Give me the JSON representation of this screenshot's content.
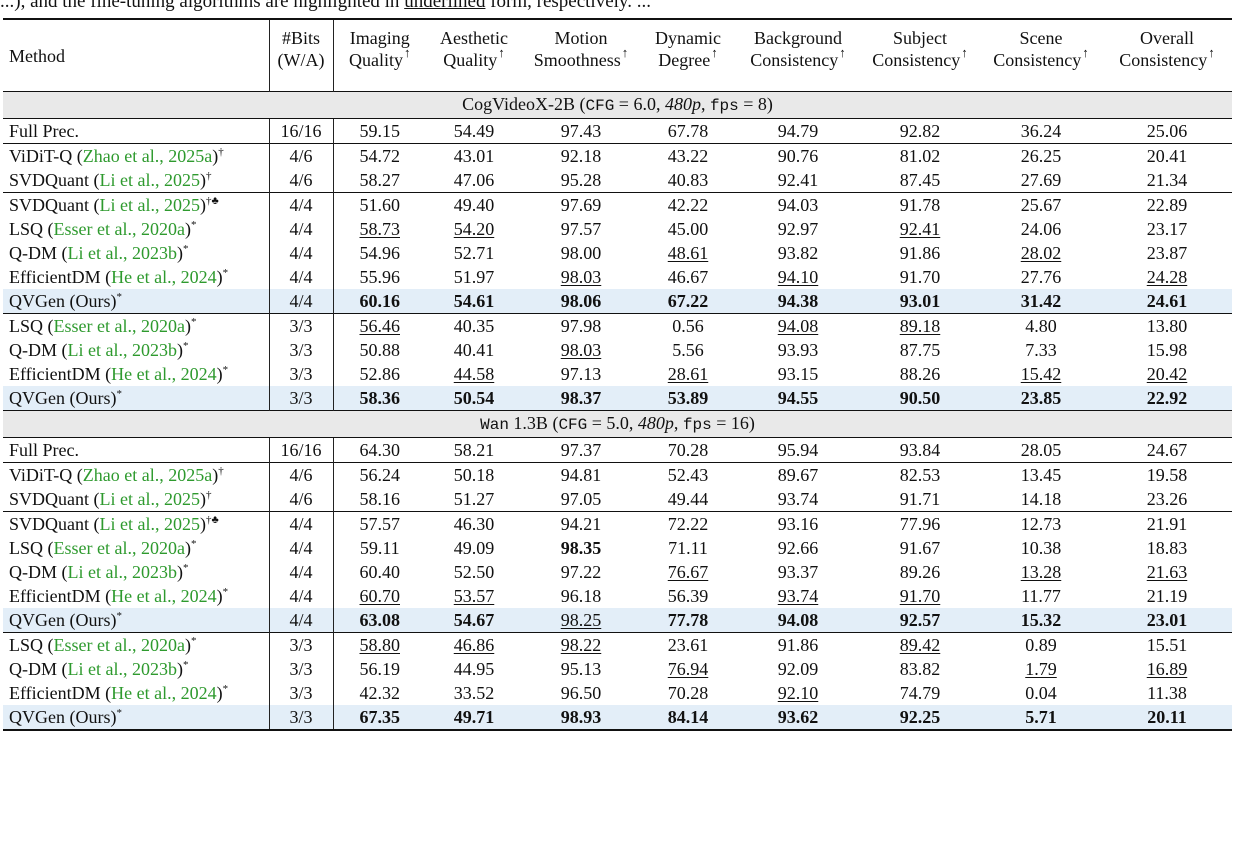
{
  "top_line": {
    "left": "...), and the fine-tuning algorithms are highlighted in",
    "underlined": "underlined",
    "right": "form, respectively. ..."
  },
  "headers": [
    {
      "key": "method",
      "l1": "Method",
      "l2": ""
    },
    {
      "key": "bits",
      "l1": "#Bits",
      "l2": "(W/A)"
    },
    {
      "key": "iq",
      "l1": "Imaging",
      "l2": "Quality",
      "arrow": "↑"
    },
    {
      "key": "aq",
      "l1": "Aesthetic",
      "l2": "Quality",
      "arrow": "↑"
    },
    {
      "key": "ms",
      "l1": "Motion",
      "l2": "Smoothness",
      "arrow": "↑"
    },
    {
      "key": "dd",
      "l1": "Dynamic",
      "l2": "Degree",
      "arrow": "↑"
    },
    {
      "key": "bc",
      "l1": "Background",
      "l2": "Consistency",
      "arrow": "↑"
    },
    {
      "key": "sc",
      "l1": "Subject",
      "l2": "Consistency",
      "arrow": "↑"
    },
    {
      "key": "scc",
      "l1": "Scene",
      "l2": "Consistency",
      "arrow": "↑"
    },
    {
      "key": "oc",
      "l1": "Overall",
      "l2": "Consistency",
      "arrow": "↑"
    }
  ],
  "sections": [
    {
      "title": "CogVideoX-2B (CFG = 6.0, 480p, fps = 8)",
      "title_model": "CogVideoX-2B",
      "title_cfg": "CFG",
      "title_cfg_val": "6.0",
      "title_res": "480p",
      "title_fps": "fps",
      "title_fps_val": "8",
      "groups": [
        [
          {
            "method": "Full Prec.",
            "cite": "",
            "mark": "",
            "bits": "16/16",
            "values": [
              "59.15",
              "54.49",
              "97.43",
              "67.78",
              "94.79",
              "92.82",
              "36.24",
              "25.06"
            ],
            "bold": [],
            "under": []
          }
        ],
        [
          {
            "method": "ViDiT-Q",
            "cite": "Zhao et al., 2025a",
            "mark": "†",
            "bits": "4/6",
            "values": [
              "54.72",
              "43.01",
              "92.18",
              "43.22",
              "90.76",
              "81.02",
              "26.25",
              "20.41"
            ],
            "bold": [],
            "under": []
          },
          {
            "method": "SVDQuant",
            "cite": "Li et al., 2025",
            "mark": "†",
            "bits": "4/6",
            "values": [
              "58.27",
              "47.06",
              "95.28",
              "40.83",
              "92.41",
              "87.45",
              "27.69",
              "21.34"
            ],
            "bold": [],
            "under": []
          }
        ],
        [
          {
            "method": "SVDQuant",
            "cite": "Li et al., 2025",
            "mark": "†♣",
            "bits": "4/4",
            "values": [
              "51.60",
              "49.40",
              "97.69",
              "42.22",
              "94.03",
              "91.78",
              "25.67",
              "22.89"
            ],
            "bold": [],
            "under": []
          },
          {
            "method": "LSQ",
            "cite": "Esser et al., 2020a",
            "mark": "*",
            "bits": "4/4",
            "values": [
              "58.73",
              "54.20",
              "97.57",
              "45.00",
              "92.97",
              "92.41",
              "24.06",
              "23.17"
            ],
            "bold": [],
            "under": [
              0,
              1,
              5
            ]
          },
          {
            "method": "Q-DM",
            "cite": "Li et al., 2023b",
            "mark": "*",
            "bits": "4/4",
            "values": [
              "54.96",
              "52.71",
              "98.00",
              "48.61",
              "93.82",
              "91.86",
              "28.02",
              "23.87"
            ],
            "bold": [],
            "under": [
              3,
              6
            ]
          },
          {
            "method": "EfficientDM",
            "cite": "He et al., 2024",
            "mark": "*",
            "bits": "4/4",
            "values": [
              "55.96",
              "51.97",
              "98.03",
              "46.67",
              "94.10",
              "91.70",
              "27.76",
              "24.28"
            ],
            "bold": [],
            "under": [
              2,
              4,
              7
            ]
          },
          {
            "method": "QVGen (Ours)",
            "cite": "",
            "mark": "*",
            "bits": "4/4",
            "values": [
              "60.16",
              "54.61",
              "98.06",
              "67.22",
              "94.38",
              "93.01",
              "31.42",
              "24.61"
            ],
            "bold": [
              0,
              1,
              2,
              3,
              4,
              5,
              6,
              7
            ],
            "under": [],
            "hl": true
          }
        ],
        [
          {
            "method": "LSQ",
            "cite": "Esser et al., 2020a",
            "mark": "*",
            "bits": "3/3",
            "values": [
              "56.46",
              "40.35",
              "97.98",
              "0.56",
              "94.08",
              "89.18",
              "4.80",
              "13.80"
            ],
            "bold": [],
            "under": [
              0,
              4,
              5
            ]
          },
          {
            "method": "Q-DM",
            "cite": "Li et al., 2023b",
            "mark": "*",
            "bits": "3/3",
            "values": [
              "50.88",
              "40.41",
              "98.03",
              "5.56",
              "93.93",
              "87.75",
              "7.33",
              "15.98"
            ],
            "bold": [],
            "under": [
              2
            ]
          },
          {
            "method": "EfficientDM",
            "cite": "He et al., 2024",
            "mark": "*",
            "bits": "3/3",
            "values": [
              "52.86",
              "44.58",
              "97.13",
              "28.61",
              "93.15",
              "88.26",
              "15.42",
              "20.42"
            ],
            "bold": [],
            "under": [
              1,
              3,
              6,
              7
            ]
          },
          {
            "method": "QVGen (Ours)",
            "cite": "",
            "mark": "*",
            "bits": "3/3",
            "values": [
              "58.36",
              "50.54",
              "98.37",
              "53.89",
              "94.55",
              "90.50",
              "23.85",
              "22.92"
            ],
            "bold": [
              0,
              1,
              2,
              3,
              4,
              5,
              6,
              7
            ],
            "under": [],
            "hl": true
          }
        ]
      ]
    },
    {
      "title": "Wan 1.3B (CFG = 5.0, 480p, fps = 16)",
      "title_model": "Wan",
      "title_model2": "1.3B",
      "title_cfg": "CFG",
      "title_cfg_val": "5.0",
      "title_res": "480p",
      "title_fps": "fps",
      "title_fps_val": "16",
      "groups": [
        [
          {
            "method": "Full Prec.",
            "cite": "",
            "mark": "",
            "bits": "16/16",
            "values": [
              "64.30",
              "58.21",
              "97.37",
              "70.28",
              "95.94",
              "93.84",
              "28.05",
              "24.67"
            ],
            "bold": [],
            "under": []
          }
        ],
        [
          {
            "method": "ViDiT-Q",
            "cite": "Zhao et al., 2025a",
            "mark": "†",
            "bits": "4/6",
            "values": [
              "56.24",
              "50.18",
              "94.81",
              "52.43",
              "89.67",
              "82.53",
              "13.45",
              "19.58"
            ],
            "bold": [],
            "under": []
          },
          {
            "method": "SVDQuant",
            "cite": "Li et al., 2025",
            "mark": "†",
            "bits": "4/6",
            "values": [
              "58.16",
              "51.27",
              "97.05",
              "49.44",
              "93.74",
              "91.71",
              "14.18",
              "23.26"
            ],
            "bold": [],
            "under": []
          }
        ],
        [
          {
            "method": "SVDQuant",
            "cite": "Li et al., 2025",
            "mark": "†♣",
            "bits": "4/4",
            "values": [
              "57.57",
              "46.30",
              "94.21",
              "72.22",
              "93.16",
              "77.96",
              "12.73",
              "21.91"
            ],
            "bold": [],
            "under": []
          },
          {
            "method": "LSQ",
            "cite": "Esser et al., 2020a",
            "mark": "*",
            "bits": "4/4",
            "values": [
              "59.11",
              "49.09",
              "98.35",
              "71.11",
              "92.66",
              "91.67",
              "10.38",
              "18.83"
            ],
            "bold": [
              2
            ],
            "under": []
          },
          {
            "method": "Q-DM",
            "cite": "Li et al., 2023b",
            "mark": "*",
            "bits": "4/4",
            "values": [
              "60.40",
              "52.50",
              "97.22",
              "76.67",
              "93.37",
              "89.26",
              "13.28",
              "21.63"
            ],
            "bold": [],
            "under": [
              3,
              6,
              7
            ]
          },
          {
            "method": "EfficientDM",
            "cite": "He et al., 2024",
            "mark": "*",
            "bits": "4/4",
            "values": [
              "60.70",
              "53.57",
              "96.18",
              "56.39",
              "93.74",
              "91.70",
              "11.77",
              "21.19"
            ],
            "bold": [],
            "under": [
              0,
              1,
              4,
              5
            ]
          },
          {
            "method": "QVGen (Ours)",
            "cite": "",
            "mark": "*",
            "bits": "4/4",
            "values": [
              "63.08",
              "54.67",
              "98.25",
              "77.78",
              "94.08",
              "92.57",
              "15.32",
              "23.01"
            ],
            "bold": [
              0,
              1,
              3,
              4,
              5,
              6,
              7
            ],
            "under": [
              2
            ],
            "hl": true
          }
        ],
        [
          {
            "method": "LSQ",
            "cite": "Esser et al., 2020a",
            "mark": "*",
            "bits": "3/3",
            "values": [
              "58.80",
              "46.86",
              "98.22",
              "23.61",
              "91.86",
              "89.42",
              "0.89",
              "15.51"
            ],
            "bold": [],
            "under": [
              0,
              1,
              2,
              5
            ]
          },
          {
            "method": "Q-DM",
            "cite": "Li et al., 2023b",
            "mark": "*",
            "bits": "3/3",
            "values": [
              "56.19",
              "44.95",
              "95.13",
              "76.94",
              "92.09",
              "83.82",
              "1.79",
              "16.89"
            ],
            "bold": [],
            "under": [
              3,
              6,
              7
            ]
          },
          {
            "method": "EfficientDM",
            "cite": "He et al., 2024",
            "mark": "*",
            "bits": "3/3",
            "values": [
              "42.32",
              "33.52",
              "96.50",
              "70.28",
              "92.10",
              "74.79",
              "0.04",
              "11.38"
            ],
            "bold": [],
            "under": [
              4
            ]
          },
          {
            "method": "QVGen (Ours)",
            "cite": "",
            "mark": "*",
            "bits": "3/3",
            "values": [
              "67.35",
              "49.71",
              "98.93",
              "84.14",
              "93.62",
              "92.25",
              "5.71",
              "20.11"
            ],
            "bold": [
              0,
              1,
              2,
              3,
              4,
              5,
              6,
              7
            ],
            "under": [],
            "hl": true
          }
        ]
      ]
    }
  ]
}
